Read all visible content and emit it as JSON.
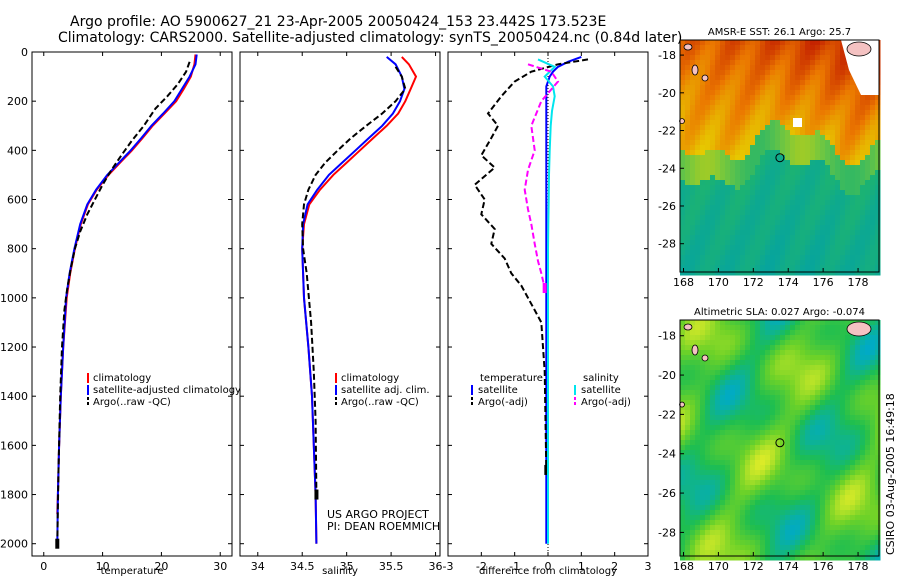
{
  "header": {
    "line1": "Argo profile: AO 5900627_21 23-Apr-2005 20050424_153 23.442S 173.523E",
    "line2": "Climatology: CARS2000. Satellite-adjusted climatology: synTS_20050424.nc (0.84d later)"
  },
  "footer": {
    "project_line1": "US ARGO PROJECT",
    "project_line2": "PI: DEAN ROEMMICH",
    "stamp": "CSIRO 03-Aug-2005 16:49:18"
  },
  "colors": {
    "climatology": "#ff0000",
    "satellite": "#0000ff",
    "argo": "#000000",
    "satellite_salinity": "#00e5ee",
    "argo_salinity": "#ff00ff"
  },
  "chart_data": [
    {
      "type": "line",
      "xlabel": "temperature",
      "ylabel": "",
      "xlim": [
        -2,
        32
      ],
      "ylim": [
        2050,
        0
      ],
      "xticks": [
        0,
        10,
        20,
        30
      ],
      "yticks": [
        0,
        200,
        400,
        600,
        800,
        1000,
        1200,
        1400,
        1600,
        1800,
        2000
      ],
      "legend": [
        "climatology",
        "satellite-adjusted climatology",
        "Argo(..raw -QC)"
      ],
      "series": [
        {
          "name": "climatology",
          "color": "#ff0000",
          "x": [
            25.8,
            25.6,
            25.0,
            23.8,
            22.5,
            20.5,
            18.5,
            16.8,
            15.0,
            13.0,
            11.0,
            9.0,
            7.5,
            6.3,
            5.3,
            4.5,
            3.9,
            3.3,
            2.9,
            2.6,
            2.4,
            2.3
          ],
          "y": [
            10,
            50,
            100,
            150,
            200,
            250,
            300,
            350,
            400,
            450,
            500,
            560,
            620,
            700,
            800,
            900,
            1000,
            1200,
            1400,
            1600,
            1800,
            1880
          ]
        },
        {
          "name": "satellite-adjusted climatology",
          "color": "#0000ff",
          "x": [
            26.0,
            25.8,
            24.8,
            23.5,
            22.2,
            20.3,
            18.3,
            16.6,
            14.8,
            12.8,
            10.8,
            8.9,
            7.4,
            6.2,
            5.2,
            4.4,
            3.8,
            3.3,
            2.9,
            2.6,
            2.4,
            2.3
          ],
          "y": [
            10,
            50,
            100,
            150,
            200,
            250,
            300,
            350,
            400,
            450,
            500,
            560,
            620,
            700,
            800,
            900,
            1000,
            1200,
            1400,
            1600,
            1800,
            2000
          ]
        },
        {
          "name": "Argo(..raw -QC)",
          "color": "#000000",
          "x": [
            24.8,
            24.2,
            22.8,
            21.0,
            19.0,
            17.0,
            15.0,
            13.2,
            11.5,
            10.0,
            8.7,
            7.4,
            6.2,
            5.3,
            4.6,
            4.0,
            3.5,
            3.1,
            2.8,
            2.5,
            2.3
          ],
          "y": [
            40,
            80,
            130,
            180,
            230,
            300,
            360,
            420,
            480,
            540,
            600,
            660,
            730,
            800,
            880,
            960,
            1050,
            1200,
            1400,
            1700,
            2000
          ]
        }
      ]
    },
    {
      "type": "line",
      "xlabel": "salinity",
      "ylabel": "",
      "xlim": [
        33.8,
        36.05
      ],
      "ylim": [
        2050,
        0
      ],
      "xticks": [
        34,
        34.5,
        35,
        35.5,
        36
      ],
      "legend": [
        "climatology",
        "satellite adj. clim.",
        "Argo(..raw -QC)"
      ],
      "series": [
        {
          "name": "climatology",
          "color": "#ff0000",
          "x": [
            35.62,
            35.7,
            35.78,
            35.72,
            35.66,
            35.58,
            35.45,
            35.3,
            35.15,
            35.0,
            34.85,
            34.7,
            34.58,
            34.52,
            34.5,
            34.52,
            34.57,
            34.61,
            34.63,
            34.65,
            34.66
          ],
          "y": [
            20,
            50,
            100,
            150,
            200,
            250,
            300,
            350,
            400,
            450,
            500,
            560,
            620,
            700,
            800,
            1000,
            1200,
            1400,
            1600,
            1800,
            2000
          ]
        },
        {
          "name": "satellite adj. clim.",
          "color": "#0000ff",
          "x": [
            35.45,
            35.55,
            35.62,
            35.65,
            35.6,
            35.52,
            35.4,
            35.25,
            35.1,
            34.95,
            34.8,
            34.67,
            34.56,
            34.51,
            34.5,
            34.52,
            34.57,
            34.61,
            34.63,
            34.65,
            34.66
          ],
          "y": [
            20,
            50,
            100,
            150,
            200,
            250,
            300,
            350,
            400,
            450,
            500,
            560,
            620,
            700,
            800,
            1000,
            1200,
            1400,
            1600,
            1800,
            2000
          ]
        },
        {
          "name": "Argo(..raw -QC)",
          "color": "#000000",
          "x": [
            35.55,
            35.62,
            35.66,
            35.55,
            35.4,
            35.22,
            35.05,
            34.9,
            34.76,
            34.65,
            34.57,
            34.52,
            34.5,
            34.51,
            34.55,
            34.6,
            34.63,
            34.65,
            34.66
          ],
          "y": [
            60,
            100,
            150,
            200,
            250,
            300,
            350,
            400,
            450,
            500,
            560,
            620,
            700,
            800,
            900,
            1100,
            1300,
            1500,
            1800
          ]
        }
      ]
    },
    {
      "type": "line",
      "xlabel": "difference from climatology",
      "ylabel": "",
      "xlim": [
        -3,
        3
      ],
      "ylim": [
        2050,
        0
      ],
      "xticks": [
        -3,
        -2,
        -1,
        0,
        1,
        2,
        3
      ],
      "legend": [
        "temperature",
        "satellite",
        "Argo(-adj)",
        "salinity",
        "satellite",
        "Argo(-adj)"
      ],
      "series": [
        {
          "name": "temperature satellite",
          "color": "#0000ff",
          "x": [
            1.0,
            0.6,
            0.3,
            0.15,
            0.05,
            0.0,
            -0.05,
            -0.05,
            -0.05,
            -0.05,
            -0.05,
            -0.05,
            -0.05,
            -0.05,
            -0.05,
            -0.05,
            -0.05,
            -0.05,
            -0.05,
            -0.05,
            -0.05,
            -0.05
          ],
          "y": [
            20,
            40,
            60,
            80,
            100,
            120,
            140,
            200,
            300,
            400,
            600,
            800,
            1000,
            1100,
            1200,
            1300,
            1400,
            1500,
            1600,
            1700,
            1800,
            2000
          ]
        },
        {
          "name": "temperature Argo(-adj)",
          "color": "#000000",
          "x": [
            1.2,
            0.3,
            -0.5,
            -1.0,
            -1.4,
            -1.8,
            -1.5,
            -1.7,
            -2.0,
            -1.6,
            -2.2,
            -1.9,
            -2.0,
            -1.6,
            -1.7,
            -1.3,
            -1.1,
            -0.8,
            -0.6,
            -0.4,
            -0.2,
            -0.1,
            -0.05
          ],
          "y": [
            30,
            50,
            80,
            120,
            180,
            250,
            300,
            350,
            420,
            470,
            540,
            600,
            660,
            720,
            780,
            840,
            900,
            950,
            1000,
            1050,
            1100,
            1300,
            1700
          ]
        },
        {
          "name": "salinity satellite",
          "color": "#00e5ee",
          "x": [
            -0.3,
            0.2,
            -0.1,
            0.15,
            0.2,
            0.12,
            0.08,
            0.05,
            0.03,
            0.02,
            0.01,
            0.0,
            0.0,
            0.0,
            0.0,
            0.0
          ],
          "y": [
            30,
            60,
            100,
            140,
            180,
            240,
            300,
            400,
            500,
            600,
            700,
            800,
            1000,
            1400,
            1800,
            2000
          ]
        },
        {
          "name": "salinity Argo(-adj)",
          "color": "#ff00ff",
          "x": [
            -0.6,
            0.1,
            0.3,
            -0.2,
            -0.5,
            -0.4,
            -0.6,
            -0.7,
            -0.6,
            -0.5,
            -0.4,
            -0.3,
            -0.2,
            -0.1
          ],
          "y": [
            50,
            80,
            120,
            200,
            300,
            400,
            480,
            560,
            640,
            700,
            780,
            850,
            900,
            960
          ]
        }
      ]
    }
  ],
  "maps": [
    {
      "title": "AMSR-E SST: 26.1 Argo: 25.7",
      "xticks": [
        "168",
        "170",
        "172",
        "174",
        "176",
        "178"
      ],
      "yticks": [
        "-18",
        "-20",
        "-22",
        "-24",
        "-26",
        "-28"
      ],
      "xlim": [
        167.8,
        179.2
      ],
      "ylim": [
        -29.5,
        -17.2
      ],
      "marker": {
        "lon": 173.523,
        "lat": -23.442
      }
    },
    {
      "title": "Altimetric SLA: 0.027 Argo: -0.074",
      "xticks": [
        "168",
        "170",
        "172",
        "174",
        "176",
        "178"
      ],
      "yticks": [
        "-18",
        "-20",
        "-22",
        "-24",
        "-26",
        "-28"
      ],
      "xlim": [
        167.8,
        179.2
      ],
      "ylim": [
        -29.2,
        -17.2
      ],
      "marker": {
        "lon": 173.523,
        "lat": -23.442
      }
    }
  ]
}
